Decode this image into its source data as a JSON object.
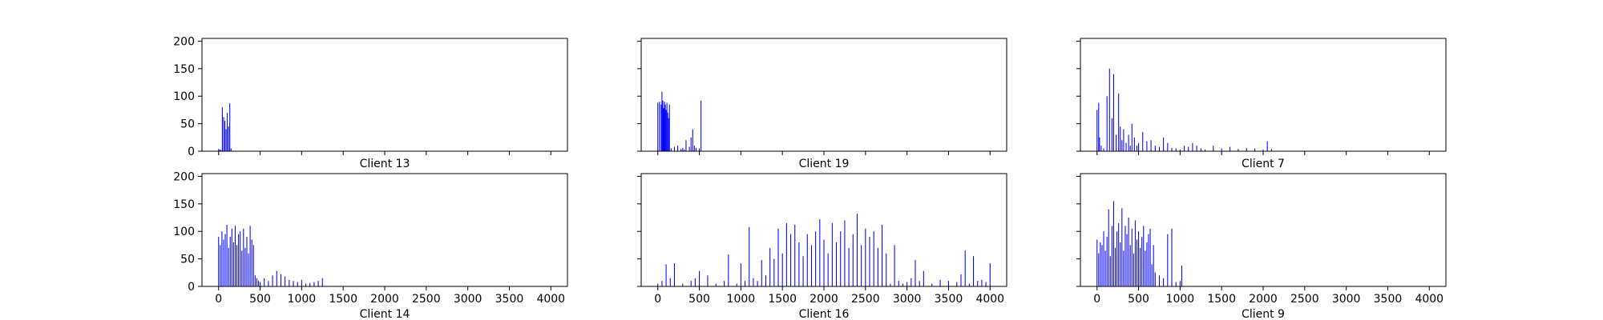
{
  "chart_data": [
    {
      "type": "bar",
      "xlabel": "Client 13",
      "xlim": [
        -200,
        4200
      ],
      "ylim": [
        0,
        205
      ],
      "xticks": [
        0,
        500,
        1000,
        1500,
        2000,
        2500,
        3000,
        3500,
        4000
      ],
      "yticks": [
        0,
        50,
        100,
        150,
        200
      ],
      "show_xtick_labels": false,
      "show_ytick_labels": true,
      "color": "#0000ff",
      "x": [
        0,
        15,
        30,
        45,
        60,
        75,
        90,
        105,
        120,
        135,
        150
      ],
      "values": [
        4,
        3,
        2,
        80,
        62,
        55,
        40,
        70,
        45,
        87,
        5
      ]
    },
    {
      "type": "bar",
      "xlabel": "Client 19",
      "xlim": [
        -200,
        4200
      ],
      "ylim": [
        0,
        205
      ],
      "xticks": [
        0,
        500,
        1000,
        1500,
        2000,
        2500,
        3000,
        3500,
        4000
      ],
      "yticks": [
        0,
        50,
        100,
        150,
        200
      ],
      "show_xtick_labels": false,
      "show_ytick_labels": false,
      "color": "#0000ff",
      "x": [
        0,
        20,
        40,
        50,
        60,
        70,
        80,
        90,
        100,
        110,
        120,
        130,
        140,
        160,
        200,
        240,
        280,
        300,
        320,
        340,
        380,
        400,
        420,
        440,
        460,
        500,
        520
      ],
      "values": [
        88,
        90,
        85,
        108,
        92,
        78,
        90,
        85,
        75,
        88,
        70,
        60,
        85,
        5,
        8,
        10,
        4,
        6,
        3,
        20,
        8,
        25,
        40,
        10,
        6,
        5,
        92
      ]
    },
    {
      "type": "bar",
      "xlabel": "Client 7",
      "xlim": [
        -200,
        4200
      ],
      "ylim": [
        0,
        205
      ],
      "xticks": [
        0,
        500,
        1000,
        1500,
        2000,
        2500,
        3000,
        3500,
        4000
      ],
      "yticks": [
        0,
        50,
        100,
        150,
        200
      ],
      "show_xtick_labels": false,
      "show_ytick_labels": false,
      "color": "#0000ff",
      "x": [
        0,
        20,
        30,
        50,
        80,
        120,
        150,
        180,
        200,
        230,
        260,
        280,
        300,
        320,
        350,
        380,
        400,
        420,
        450,
        480,
        500,
        550,
        600,
        650,
        700,
        750,
        800,
        850,
        900,
        950,
        1000,
        1050,
        1100,
        1150,
        1200,
        1250,
        1300,
        1400,
        1500,
        1600,
        1700,
        1800,
        1900,
        2000,
        2050,
        2100
      ],
      "values": [
        75,
        88,
        25,
        10,
        5,
        100,
        150,
        60,
        140,
        30,
        105,
        45,
        20,
        40,
        15,
        30,
        10,
        50,
        25,
        10,
        15,
        35,
        18,
        20,
        10,
        8,
        25,
        15,
        6,
        5,
        3,
        10,
        8,
        15,
        10,
        5,
        3,
        10,
        5,
        8,
        4,
        6,
        5,
        3,
        18,
        4
      ]
    },
    {
      "type": "bar",
      "xlabel": "Client 14",
      "xlim": [
        -200,
        4200
      ],
      "ylim": [
        0,
        205
      ],
      "xticks": [
        0,
        500,
        1000,
        1500,
        2000,
        2500,
        3000,
        3500,
        4000
      ],
      "yticks": [
        0,
        50,
        100,
        150,
        200
      ],
      "show_xtick_labels": true,
      "show_ytick_labels": true,
      "color": "#0000ff",
      "x": [
        0,
        20,
        40,
        60,
        80,
        100,
        120,
        140,
        160,
        180,
        200,
        220,
        240,
        260,
        280,
        300,
        320,
        340,
        360,
        380,
        400,
        420,
        440,
        460,
        480,
        500,
        550,
        600,
        650,
        700,
        750,
        800,
        850,
        900,
        950,
        1000,
        1050,
        1100,
        1150,
        1200,
        1250
      ],
      "values": [
        90,
        75,
        100,
        85,
        95,
        112,
        70,
        90,
        105,
        80,
        110,
        75,
        95,
        100,
        65,
        105,
        70,
        90,
        60,
        110,
        85,
        75,
        20,
        15,
        10,
        8,
        15,
        10,
        20,
        28,
        22,
        18,
        12,
        10,
        8,
        12,
        5,
        6,
        8,
        10,
        15
      ]
    },
    {
      "type": "bar",
      "xlabel": "Client 16",
      "xlim": [
        -200,
        4200
      ],
      "ylim": [
        0,
        205
      ],
      "xticks": [
        0,
        500,
        1000,
        1500,
        2000,
        2500,
        3000,
        3500,
        4000
      ],
      "yticks": [
        0,
        50,
        100,
        150,
        200
      ],
      "show_xtick_labels": true,
      "show_ytick_labels": false,
      "color": "#0000ff",
      "x": [
        0,
        50,
        100,
        150,
        200,
        300,
        400,
        450,
        500,
        600,
        700,
        800,
        850,
        950,
        1000,
        1050,
        1100,
        1150,
        1200,
        1250,
        1300,
        1350,
        1400,
        1450,
        1500,
        1550,
        1600,
        1650,
        1700,
        1750,
        1800,
        1850,
        1900,
        1950,
        2000,
        2050,
        2100,
        2150,
        2200,
        2250,
        2300,
        2350,
        2400,
        2450,
        2500,
        2550,
        2600,
        2650,
        2700,
        2750,
        2800,
        2850,
        2900,
        2950,
        3000,
        3050,
        3100,
        3150,
        3200,
        3300,
        3400,
        3500,
        3600,
        3650,
        3700,
        3750,
        3800,
        3850,
        3900,
        3950,
        4000
      ],
      "values": [
        5,
        10,
        40,
        15,
        42,
        5,
        10,
        15,
        28,
        20,
        5,
        10,
        58,
        5,
        42,
        10,
        108,
        15,
        10,
        48,
        20,
        70,
        50,
        105,
        60,
        115,
        95,
        112,
        80,
        55,
        95,
        75,
        100,
        122,
        85,
        60,
        115,
        80,
        100,
        120,
        70,
        95,
        132,
        75,
        105,
        90,
        100,
        70,
        112,
        60,
        5,
        75,
        10,
        5,
        8,
        15,
        48,
        10,
        28,
        5,
        12,
        10,
        8,
        22,
        65,
        5,
        55,
        10,
        12,
        8,
        42
      ]
    },
    {
      "type": "bar",
      "xlabel": "Client 9",
      "xlim": [
        -200,
        4200
      ],
      "ylim": [
        0,
        205
      ],
      "xticks": [
        0,
        500,
        1000,
        1500,
        2000,
        2500,
        3000,
        3500,
        4000
      ],
      "yticks": [
        0,
        50,
        100,
        150,
        200
      ],
      "show_xtick_labels": true,
      "show_ytick_labels": false,
      "color": "#0000ff",
      "x": [
        0,
        20,
        40,
        60,
        80,
        100,
        120,
        140,
        160,
        180,
        200,
        220,
        240,
        260,
        280,
        300,
        320,
        340,
        360,
        380,
        400,
        420,
        440,
        460,
        480,
        500,
        520,
        540,
        560,
        580,
        600,
        620,
        640,
        660,
        680,
        700,
        750,
        800,
        850,
        900,
        950,
        1000,
        1020
      ],
      "values": [
        85,
        60,
        80,
        75,
        100,
        65,
        90,
        140,
        55,
        110,
        155,
        70,
        100,
        115,
        80,
        142,
        65,
        110,
        95,
        125,
        75,
        105,
        60,
        120,
        85,
        100,
        70,
        90,
        110,
        65,
        80,
        95,
        105,
        40,
        75,
        25,
        20,
        15,
        95,
        105,
        8,
        10,
        38
      ]
    }
  ]
}
